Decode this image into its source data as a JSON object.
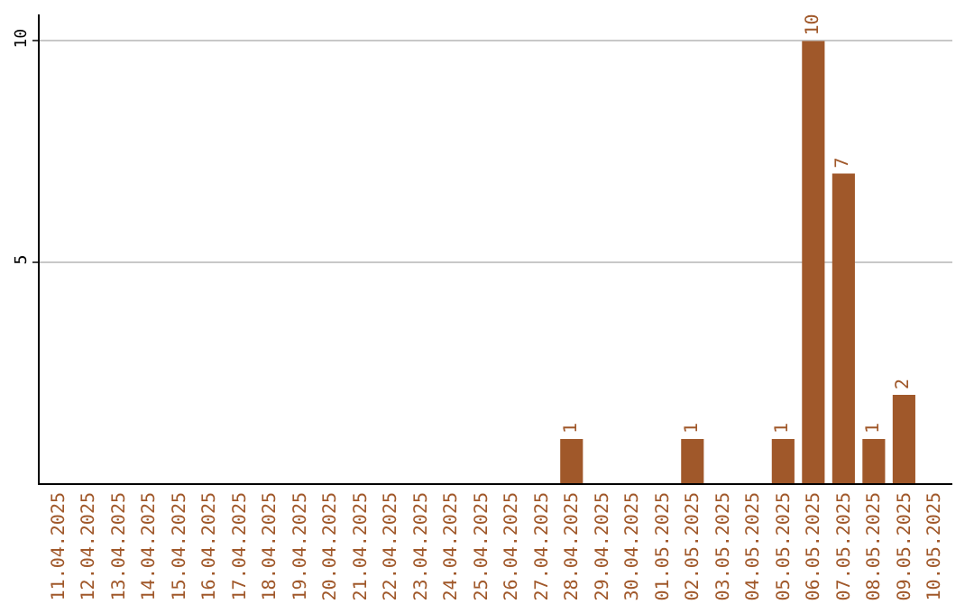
{
  "chart_data": {
    "type": "bar",
    "categories": [
      "11.04.2025",
      "12.04.2025",
      "13.04.2025",
      "14.04.2025",
      "15.04.2025",
      "16.04.2025",
      "17.04.2025",
      "18.04.2025",
      "19.04.2025",
      "20.04.2025",
      "21.04.2025",
      "22.04.2025",
      "23.04.2025",
      "24.04.2025",
      "25.04.2025",
      "26.04.2025",
      "27.04.2025",
      "28.04.2025",
      "29.04.2025",
      "30.04.2025",
      "01.05.2025",
      "02.05.2025",
      "03.05.2025",
      "04.05.2025",
      "05.05.2025",
      "06.05.2025",
      "07.05.2025",
      "08.05.2025",
      "09.05.2025",
      "10.05.2025"
    ],
    "values": [
      0,
      0,
      0,
      0,
      0,
      0,
      0,
      0,
      0,
      0,
      0,
      0,
      0,
      0,
      0,
      0,
      0,
      1,
      0,
      0,
      0,
      1,
      0,
      0,
      1,
      10,
      7,
      1,
      2,
      0
    ],
    "value_labels": [
      null,
      null,
      null,
      null,
      null,
      null,
      null,
      null,
      null,
      null,
      null,
      null,
      null,
      null,
      null,
      null,
      null,
      "1",
      null,
      null,
      null,
      "1",
      null,
      null,
      "1",
      "10",
      "7",
      "1",
      "2",
      null
    ],
    "color": "#a0582a",
    "ylim": [
      0,
      10.6
    ],
    "yticks": [
      5,
      10
    ],
    "grid": "y",
    "legend": false
  }
}
